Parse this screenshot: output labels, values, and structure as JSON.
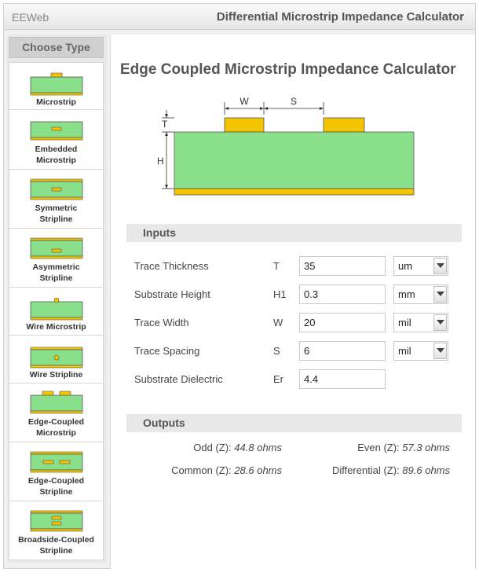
{
  "header": {
    "brand": "EEWeb",
    "title": "Differential Microstrip Impedance Calculator"
  },
  "sidebar": {
    "title": "Choose Type",
    "items": [
      {
        "id": "microstrip",
        "label": "Microstrip"
      },
      {
        "id": "embedded-microstrip",
        "label": "Embedded\nMicrostrip"
      },
      {
        "id": "symmetric-stripline",
        "label": "Symmetric\nStripline"
      },
      {
        "id": "asymmetric-stripline",
        "label": "Asymmetric\nStripline"
      },
      {
        "id": "wire-microstrip",
        "label": "Wire Microstrip"
      },
      {
        "id": "wire-stripline",
        "label": "Wire Stripline"
      },
      {
        "id": "edge-coupled-microstrip",
        "label": "Edge-Coupled\nMicrostrip"
      },
      {
        "id": "edge-coupled-stripline",
        "label": "Edge-Coupled\nStripline"
      },
      {
        "id": "broadside-coupled-stripline",
        "label": "Broadside-Coupled\nStripline"
      }
    ]
  },
  "main": {
    "title": "Edge Coupled Microstrip Impedance Calculator",
    "diagram": {
      "w": "W",
      "s": "S",
      "t": "T",
      "h": "H"
    },
    "inputs_title": "Inputs",
    "inputs": [
      {
        "label": "Trace Thickness",
        "symbol": "T",
        "value": "35",
        "unit": "um"
      },
      {
        "label": "Substrate Height",
        "symbol": "H1",
        "value": "0.3",
        "unit": "mm"
      },
      {
        "label": "Trace Width",
        "symbol": "W",
        "value": "20",
        "unit": "mil"
      },
      {
        "label": "Trace Spacing",
        "symbol": "S",
        "value": "6",
        "unit": "mil"
      },
      {
        "label": "Substrate Dielectric",
        "symbol": "Er",
        "value": "4.4",
        "unit": null
      }
    ],
    "outputs_title": "Outputs",
    "outputs": {
      "odd": {
        "label": "Odd (Z):",
        "value": "44.8 ohms"
      },
      "even": {
        "label": "Even (Z):",
        "value": "57.3 ohms"
      },
      "common": {
        "label": "Common (Z):",
        "value": "28.6 ohms"
      },
      "differential": {
        "label": "Differential (Z):",
        "value": "89.6 ohms"
      }
    }
  },
  "colors": {
    "substrate": "#8ae08a",
    "copper": "#f5c400",
    "border": "#555555"
  }
}
